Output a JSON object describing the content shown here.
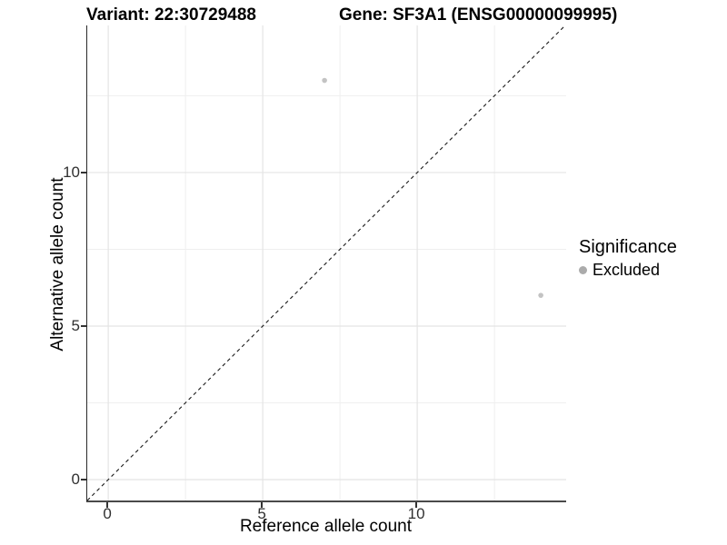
{
  "titles": {
    "left": "Variant: 22:30729488",
    "right": "Gene: SF3A1 (ENSG00000099995)"
  },
  "chart_data": {
    "type": "scatter",
    "title": "Variant: 22:30729488  Gene: SF3A1 (ENSG00000099995)",
    "xlabel": "Reference allele count",
    "ylabel": "Alternative allele count",
    "xlim": [
      -0.68,
      14.82
    ],
    "ylim": [
      -0.68,
      14.79
    ],
    "xticks": [
      0,
      5,
      10
    ],
    "yticks": [
      0,
      5,
      10
    ],
    "xminor": [
      2.5,
      7.5,
      12.5
    ],
    "yminor": [
      2.5,
      7.5,
      12.5
    ],
    "grid": true,
    "identity_line": {
      "style": "dashed",
      "slope": 1,
      "intercept": 0
    },
    "series": [
      {
        "name": "Excluded",
        "color": "#c3c3c3",
        "points": [
          {
            "x": 7,
            "y": 13
          },
          {
            "x": 14,
            "y": 6
          }
        ]
      }
    ],
    "legend": {
      "title": "Significance",
      "position": "right",
      "items": [
        {
          "label": "Excluded",
          "color": "#ababab"
        }
      ]
    }
  },
  "colors": {
    "background": "#ffffff",
    "grid_major": "#e4e4e4",
    "grid_minor": "#efefef",
    "axis_line": "#333333",
    "dashed_line": "#1a1a1a",
    "point": "#c3c3c3",
    "tick_text": "#303030"
  }
}
